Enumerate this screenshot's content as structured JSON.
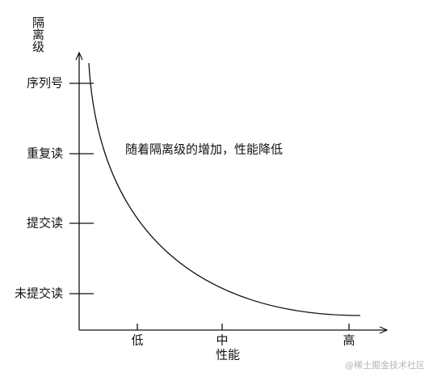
{
  "y_axis": {
    "title": "隔离级",
    "labels": [
      "序列号",
      "重复读",
      "提交读",
      "未提交读"
    ]
  },
  "x_axis": {
    "title": "性能",
    "labels": [
      "低",
      "中",
      "高"
    ]
  },
  "annotation": "随着隔离级的增加，性能降低",
  "watermark": "@稀土掘金技术社区"
}
